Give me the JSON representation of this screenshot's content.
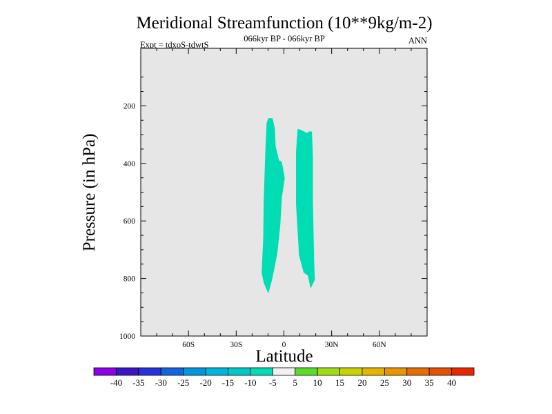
{
  "chart_data": {
    "type": "contour",
    "title": "Meridional Streamfunction (10**9kg/m-2)",
    "subtitle": "066kyr BP - 066kyr BP",
    "left_label": "Expt = tdxoS-tdwtS",
    "right_label": "ANN",
    "xlabel": "Latitude",
    "ylabel": "Pressure (in hPa)",
    "xlim": [
      -90,
      90
    ],
    "ylim": [
      1000,
      0
    ],
    "x_ticks": [
      {
        "value": -60,
        "label": "60S"
      },
      {
        "value": -30,
        "label": "30S"
      },
      {
        "value": 0,
        "label": "0"
      },
      {
        "value": 30,
        "label": "30N"
      },
      {
        "value": 60,
        "label": "60N"
      }
    ],
    "y_ticks": [
      {
        "value": 200,
        "label": "200"
      },
      {
        "value": 400,
        "label": "400"
      },
      {
        "value": 600,
        "label": "600"
      },
      {
        "value": 800,
        "label": "800"
      },
      {
        "value": 1000,
        "label": "1000"
      }
    ],
    "background_color": "#e6e6e6",
    "fill_regions": [
      {
        "level": "-10 to -5",
        "color": "#00dcb4",
        "polygon": [
          [
            -9.8,
            243
          ],
          [
            -7.2,
            243
          ],
          [
            -5.7,
            278
          ],
          [
            -5.2,
            340
          ],
          [
            -3.1,
            390
          ],
          [
            -1.3,
            395
          ],
          [
            0.5,
            452
          ],
          [
            -1.3,
            519
          ],
          [
            -2.3,
            615
          ],
          [
            -4.1,
            710
          ],
          [
            -5.7,
            757
          ],
          [
            -7.7,
            810
          ],
          [
            -9.8,
            852
          ],
          [
            -12.7,
            815
          ],
          [
            -14.0,
            780
          ],
          [
            -13.0,
            660
          ],
          [
            -12.7,
            530
          ],
          [
            -11.7,
            360
          ],
          [
            -10.9,
            260
          ]
        ]
      },
      {
        "level": "-10 to -5",
        "color": "#00dcb4",
        "polygon": [
          [
            8.6,
            280
          ],
          [
            11.2,
            285
          ],
          [
            14.5,
            295
          ],
          [
            16.1,
            288
          ],
          [
            17.6,
            290
          ],
          [
            18.2,
            380
          ],
          [
            18.2,
            530
          ],
          [
            18.9,
            720
          ],
          [
            19.4,
            805
          ],
          [
            16.8,
            835
          ],
          [
            15.0,
            790
          ],
          [
            12.4,
            780
          ],
          [
            9.5,
            720
          ],
          [
            8.4,
            620
          ],
          [
            7.6,
            540
          ],
          [
            7.6,
            360
          ]
        ]
      }
    ],
    "colorbar": {
      "labels": [
        "-40",
        "-35",
        "-30",
        "-25",
        "-20",
        "-15",
        "-10",
        "-5",
        "5",
        "10",
        "15",
        "20",
        "25",
        "30",
        "35",
        "40"
      ],
      "colors": [
        "#8c00e6",
        "#3c14c8",
        "#2832dc",
        "#1464dc",
        "#0096dc",
        "#00b4dc",
        "#00c8c8",
        "#00dcb4",
        "#f0f0f0",
        "#5adc28",
        "#a0dc14",
        "#c8d200",
        "#e6b400",
        "#e69600",
        "#e66e00",
        "#e65000",
        "#e62800"
      ]
    }
  }
}
